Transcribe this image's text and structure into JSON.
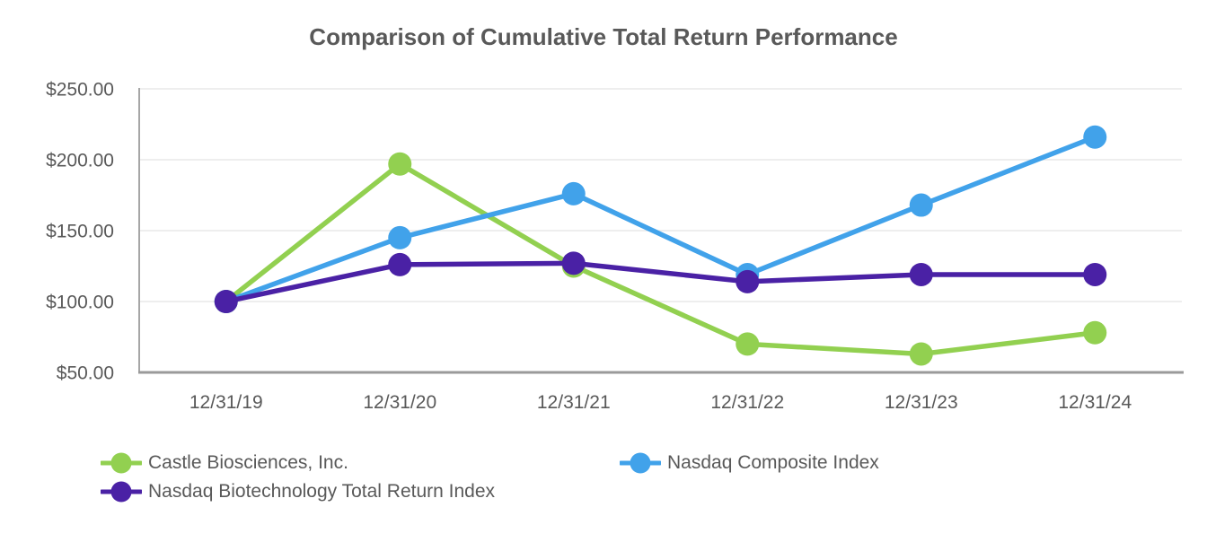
{
  "chart_data": {
    "type": "line",
    "title": "Comparison of Cumulative Total Return Performance",
    "categories": [
      "12/31/19",
      "12/31/20",
      "12/31/21",
      "12/31/22",
      "12/31/23",
      "12/31/24"
    ],
    "series": [
      {
        "name": "Castle Biosciences, Inc.",
        "color": "#92D050",
        "values": [
          100,
          197,
          125,
          70,
          63,
          78
        ]
      },
      {
        "name": "Nasdaq Composite Index",
        "color": "#41A2EA",
        "values": [
          100,
          145,
          176,
          119,
          168,
          216
        ]
      },
      {
        "name": "Nasdaq Biotechnology Total Return Index",
        "color": "#4A21A5",
        "values": [
          100,
          126,
          127,
          114,
          119,
          119
        ]
      }
    ],
    "xlabel": "",
    "ylabel": "",
    "ylim": [
      50,
      250
    ],
    "yticks": [
      50,
      100,
      150,
      200,
      250
    ],
    "ytick_labels": [
      "$50.00",
      "$100.00",
      "$150.00",
      "$200.00",
      "$250.00"
    ],
    "grid": true,
    "legend_position": "bottom-left",
    "grid_color": "#E8E8E8",
    "axis_color": "#A6A6A6",
    "text_color": "#595959"
  }
}
